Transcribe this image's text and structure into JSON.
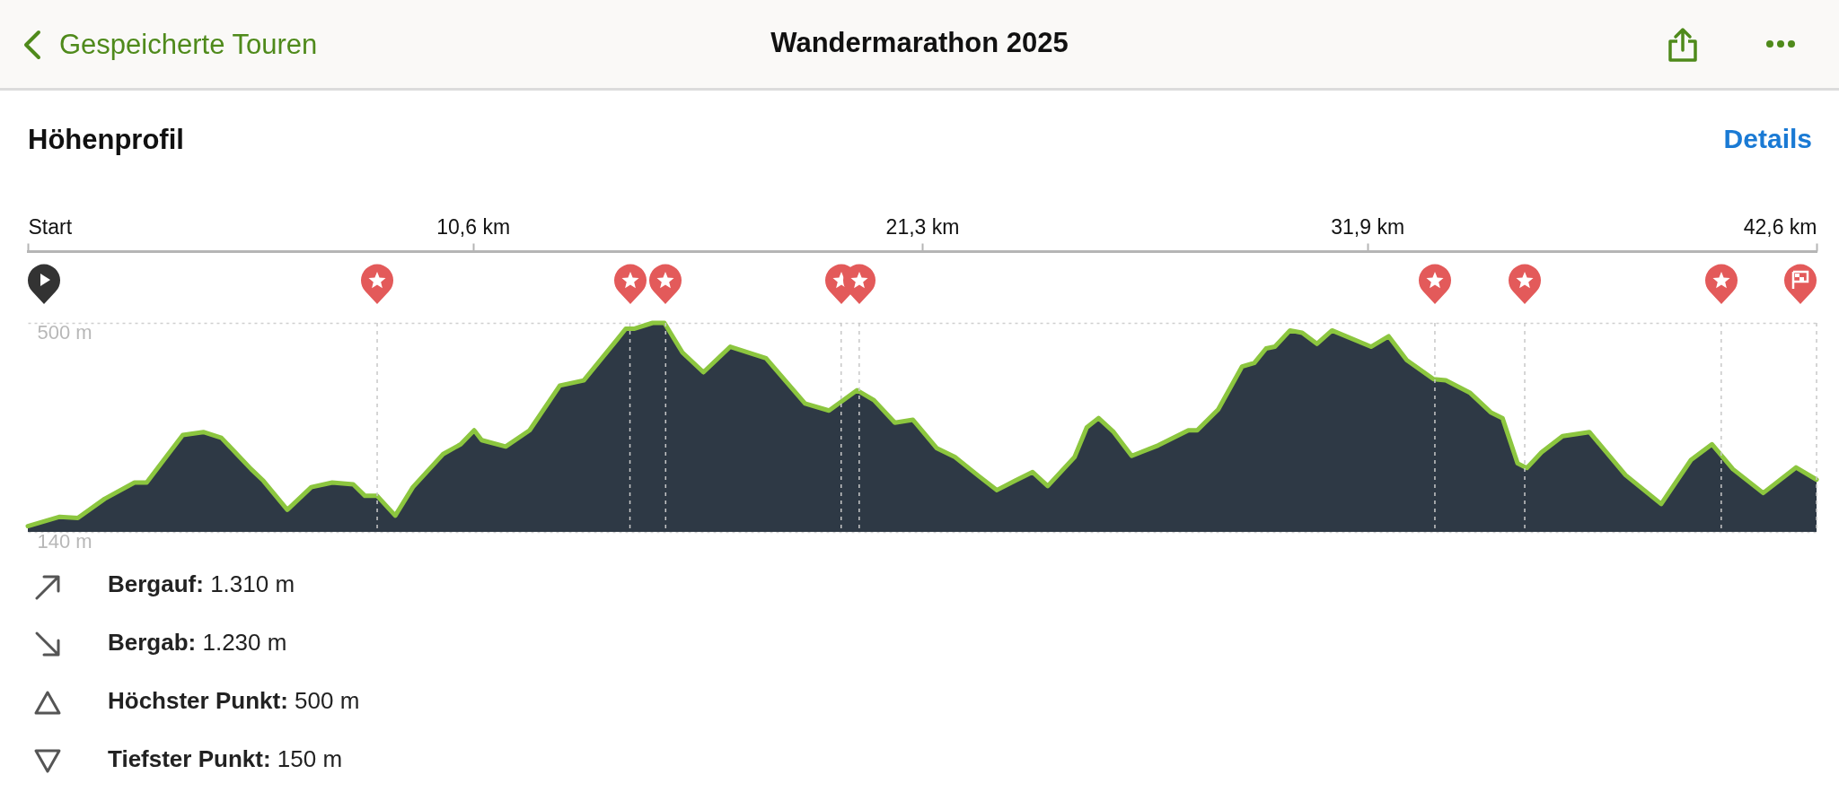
{
  "chart_data": {
    "type": "area",
    "title": "Wandermarathon 2025",
    "subtitle": "Höhenprofil",
    "annotations": [
      "Gespeicherte Touren",
      "Details",
      "Bergauf: 1.310 m",
      "Bergab: 1.230 m",
      "Höchster Punkt: 500 m",
      "Tiefster Punkt: 150 m"
    ],
    "x": [
      0,
      0.76,
      1.19,
      1.83,
      2.54,
      2.83,
      3.69,
      4.18,
      4.61,
      5.32,
      5.61,
      6.18,
      6.75,
      7.25,
      7.75,
      8.03,
      8.32,
      8.75,
      9.17,
      9.89,
      10.31,
      10.63,
      10.81,
      11.38,
      11.95,
      12.67,
      13.24,
      14.02,
      14.24,
      14.45,
      14.88,
      15.16,
      15.59,
      16.09,
      16.73,
      17.58,
      18.51,
      19.08,
      19.75,
      20.15,
      20.65,
      21.08,
      21.65,
      22.08,
      22.65,
      23.08,
      23.51,
      23.93,
      24.29,
      24.93,
      25.22,
      25.5,
      25.86,
      26.29,
      26.92,
      27.64,
      27.85,
      28.35,
      28.92,
      29.21,
      29.49,
      29.7,
      30.06,
      30.35,
      30.7,
      31.06,
      31.99,
      32.41,
      32.84,
      33.48,
      33.77,
      34.34,
      34.84,
      35.12,
      35.48,
      35.7,
      36.05,
      36.55,
      37.19,
      38.05,
      38.9,
      39.61,
      40.11,
      40.61,
      41.33,
      42.11,
      42.6
    ],
    "series": [
      {
        "color": "#8cc63f",
        "values": [
          150,
          166,
          164,
          197,
          225,
          225,
          307,
          312,
          302,
          248,
          228,
          178,
          217,
          225,
          222,
          202,
          202,
          168,
          217,
          274,
          291,
          315,
          298,
          287,
          315,
          392,
          401,
          470,
          490,
          490,
          500,
          500,
          449,
          415,
          459,
          439,
          361,
          349,
          384,
          367,
          328,
          333,
          284,
          269,
          236,
          212,
          228,
          243,
          219,
          269,
          320,
          336,
          312,
          271,
          289,
          315,
          315,
          351,
          425,
          431,
          456,
          459,
          487,
          483,
          464,
          487,
          459,
          477,
          436,
          403,
          401,
          380,
          346,
          336,
          258,
          250,
          277,
          305,
          312,
          238,
          188,
          264,
          291,
          248,
          207,
          251,
          230
        ]
      }
    ],
    "xlim": [
      0,
      42.6
    ],
    "xticks": [
      {
        "value": 0,
        "label": "Start"
      },
      {
        "value": 10.6,
        "label": "10,6 km"
      },
      {
        "value": 21.3,
        "label": "21,3 km"
      },
      {
        "value": 31.9,
        "label": "31,9 km"
      },
      {
        "value": 42.6,
        "label": "42,6 km"
      }
    ],
    "ylim": [
      140,
      500
    ],
    "yticks": [
      {
        "value": 140,
        "label": "140 m"
      },
      {
        "value": 500,
        "label": "500 m"
      }
    ],
    "grid": "y",
    "ref_lines": [
      {
        "axis": "x",
        "value": 8.32,
        "color": "#c8c8c8",
        "line_style": "dashed"
      },
      {
        "axis": "x",
        "value": 14.34,
        "color": "#c8c8c8",
        "line_style": "dashed"
      },
      {
        "axis": "x",
        "value": 15.19,
        "color": "#c8c8c8",
        "line_style": "dashed"
      },
      {
        "axis": "x",
        "value": 19.37,
        "color": "#c8c8c8",
        "line_style": "dashed"
      },
      {
        "axis": "x",
        "value": 19.8,
        "color": "#c8c8c8",
        "line_style": "dashed"
      },
      {
        "axis": "x",
        "value": 33.51,
        "color": "#c8c8c8",
        "line_style": "dashed"
      },
      {
        "axis": "x",
        "value": 35.65,
        "color": "#c8c8c8",
        "line_style": "dashed"
      },
      {
        "axis": "x",
        "value": 40.33,
        "color": "#c8c8c8",
        "line_style": "dashed"
      },
      {
        "axis": "x",
        "value": 42.6,
        "color": "#c8c8c8",
        "line_style": "dashed"
      }
    ]
  }
}
